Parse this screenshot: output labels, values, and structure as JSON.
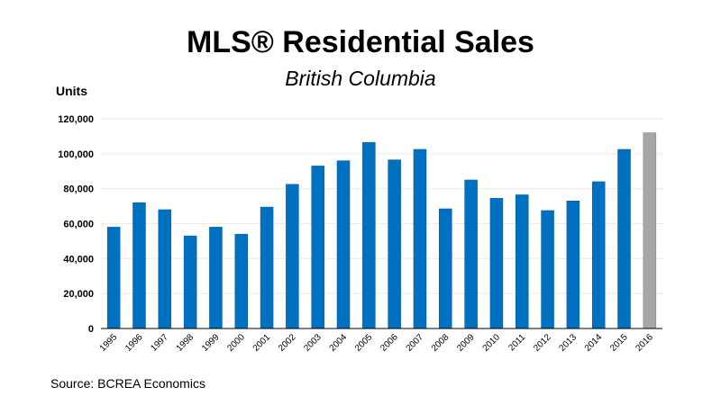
{
  "chart_data": {
    "type": "bar",
    "title": "MLS® Residential Sales",
    "subtitle": "British Columbia",
    "ylabel": "Units",
    "xlabel": "",
    "source": "Source: BCREA Economics",
    "ylim": [
      0,
      120000
    ],
    "yticks": [
      0,
      20000,
      40000,
      60000,
      80000,
      100000,
      120000
    ],
    "ytick_labels": [
      "0",
      "20,000",
      "40,000",
      "60,000",
      "80,000",
      "100,000",
      "120,000"
    ],
    "grid": true,
    "legend": "none",
    "categories": [
      "1995",
      "1996",
      "1997",
      "1998",
      "1999",
      "2000",
      "2001",
      "2002",
      "2003",
      "2004",
      "2005",
      "2006",
      "2007",
      "2008",
      "2009",
      "2010",
      "2011",
      "2012",
      "2013",
      "2014",
      "2015",
      "2016"
    ],
    "values": [
      58000,
      72000,
      68000,
      53000,
      58000,
      54000,
      69500,
      82500,
      93000,
      96000,
      106500,
      96500,
      102500,
      68500,
      85000,
      74500,
      76500,
      67500,
      73000,
      84000,
      102500,
      112000
    ],
    "bar_color": "#0070C0",
    "highlight_index": 21,
    "highlight_color": "#A6A6A6"
  }
}
